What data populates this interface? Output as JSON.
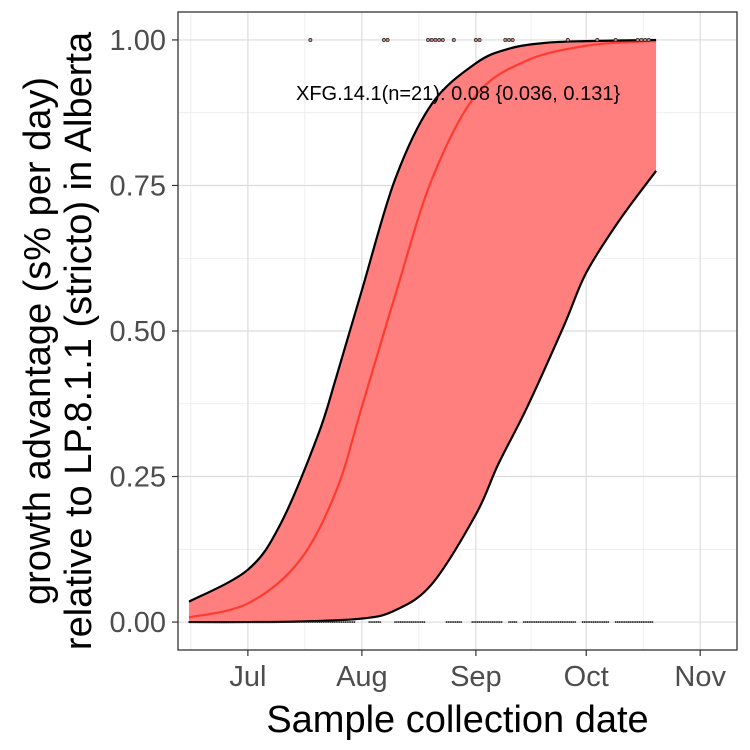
{
  "chart_data": {
    "type": "line",
    "title": "",
    "xlabel": "Sample collection date",
    "ylabel_lines": [
      "growth advantage (s% per day)",
      "relative to LP.8.1.1 (stricto) in Alberta"
    ],
    "x_ticks": [
      "Jul",
      "Aug",
      "Sep",
      "Oct",
      "Nov"
    ],
    "x_tick_dates": [
      "2025-07-01",
      "2025-08-01",
      "2025-09-01",
      "2025-10-01",
      "2025-11-01"
    ],
    "xlim": [
      "2025-06-12",
      "2025-11-11"
    ],
    "y_ticks": [
      "0.00",
      "0.25",
      "0.50",
      "0.75",
      "1.00"
    ],
    "y_tick_values": [
      0,
      0.25,
      0.5,
      0.75,
      1.0
    ],
    "ylim": [
      -0.048,
      1.048
    ],
    "grid": true,
    "annotation": "XFG.14.1(n=21): 0.08 {0.036, 0.131}",
    "colors": {
      "ribbon": "#ff7f7f",
      "fit_line": "#ff3b30",
      "bound": "#000000",
      "points": "#222222"
    },
    "series": [
      {
        "name": "XFG.14.1",
        "role": "fit",
        "x": [
          "2025-06-15",
          "2025-07-01",
          "2025-07-15",
          "2025-07-25",
          "2025-08-01",
          "2025-08-10",
          "2025-08-20",
          "2025-09-01",
          "2025-09-15",
          "2025-10-01",
          "2025-10-15",
          "2025-10-20"
        ],
        "y": [
          0.008,
          0.032,
          0.105,
          0.225,
          0.37,
          0.56,
          0.76,
          0.905,
          0.965,
          0.99,
          0.997,
          0.998
        ]
      },
      {
        "name": "upper",
        "role": "upper_bound",
        "x": [
          "2025-06-15",
          "2025-07-01",
          "2025-07-10",
          "2025-07-20",
          "2025-07-25",
          "2025-08-01",
          "2025-08-10",
          "2025-08-20",
          "2025-09-01",
          "2025-09-10",
          "2025-09-20",
          "2025-10-01",
          "2025-10-20"
        ],
        "y": [
          0.035,
          0.09,
          0.17,
          0.32,
          0.42,
          0.57,
          0.76,
          0.89,
          0.96,
          0.985,
          0.995,
          0.998,
          1.0
        ]
      },
      {
        "name": "lower",
        "role": "lower_bound",
        "x": [
          "2025-06-15",
          "2025-07-01",
          "2025-07-15",
          "2025-08-01",
          "2025-08-10",
          "2025-08-20",
          "2025-09-01",
          "2025-09-07",
          "2025-09-15",
          "2025-09-25",
          "2025-10-01",
          "2025-10-10",
          "2025-10-20"
        ],
        "y": [
          0.0,
          0.0,
          0.001,
          0.006,
          0.02,
          0.065,
          0.185,
          0.27,
          0.37,
          0.51,
          0.6,
          0.69,
          0.775
        ]
      }
    ],
    "observations": {
      "top": {
        "y": 1.0,
        "dates": [
          "2025-07-18",
          "2025-08-07",
          "2025-08-08",
          "2025-08-19",
          "2025-08-20",
          "2025-08-21",
          "2025-08-22",
          "2025-08-23",
          "2025-08-26",
          "2025-09-01",
          "2025-09-02",
          "2025-09-09",
          "2025-09-10",
          "2025-09-11",
          "2025-09-26",
          "2025-10-04",
          "2025-10-09",
          "2025-10-15",
          "2025-10-16",
          "2025-10-17",
          "2025-10-18"
        ]
      },
      "bottom": {
        "y": 0.0,
        "ranges": [
          [
            "2025-06-15",
            "2025-07-30"
          ],
          [
            "2025-08-03",
            "2025-08-06"
          ],
          [
            "2025-08-10",
            "2025-08-18"
          ],
          [
            "2025-08-24",
            "2025-08-28"
          ],
          [
            "2025-08-31",
            "2025-09-08"
          ],
          [
            "2025-09-10",
            "2025-09-12"
          ],
          [
            "2025-09-14",
            "2025-09-28"
          ],
          [
            "2025-09-30",
            "2025-10-07"
          ],
          [
            "2025-10-09",
            "2025-10-19"
          ]
        ]
      }
    }
  }
}
